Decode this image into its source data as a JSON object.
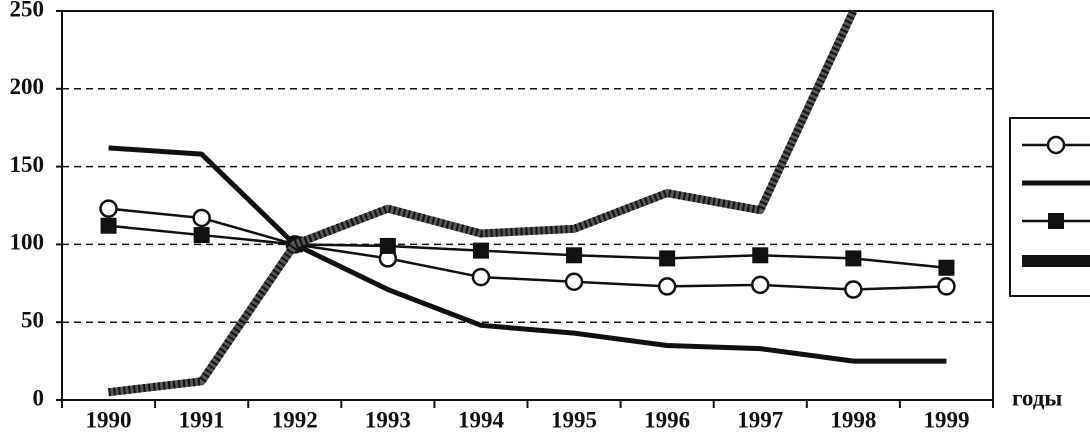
{
  "chart_data": {
    "type": "line",
    "x_label": "годы",
    "categories": [
      "1990",
      "1991",
      "1992",
      "1993",
      "1994",
      "1995",
      "1996",
      "1997",
      "1998",
      "1999"
    ],
    "series": [
      {
        "color": "#111",
        "marker": "circle",
        "width": 2.5,
        "values": [
          123,
          117,
          100,
          91,
          79,
          76,
          73,
          74,
          71,
          73
        ]
      },
      {
        "color": "#111",
        "marker": "none",
        "width": 5,
        "values": [
          162,
          158,
          100,
          71,
          48,
          43,
          35,
          33,
          25,
          25
        ]
      },
      {
        "color": "#111",
        "marker": "square",
        "width": 2.5,
        "values": [
          112,
          106,
          100,
          99,
          96,
          93,
          91,
          93,
          91,
          85
        ]
      },
      {
        "color": "#555",
        "marker": "none",
        "width": 8,
        "hatched": true,
        "values": [
          5,
          12,
          100,
          123,
          107,
          110,
          133,
          122,
          250,
          null
        ]
      }
    ],
    "ylim": [
      0,
      250
    ],
    "yticks": [
      0,
      50,
      100,
      150,
      200,
      250
    ],
    "grid": true
  }
}
